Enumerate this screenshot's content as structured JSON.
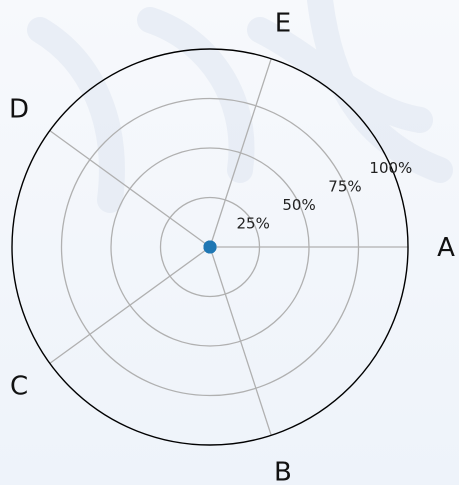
{
  "chart_data": {
    "type": "radar",
    "categories": [
      "A",
      "B",
      "C",
      "D",
      "E"
    ],
    "series": [
      {
        "values": [
          0,
          0,
          0,
          0,
          0
        ]
      }
    ],
    "radial_ticks": [
      "25%",
      "50%",
      "75%",
      "100%"
    ],
    "tick_values": [
      0.25,
      0.5,
      0.75,
      1.0
    ],
    "ylim": [
      0,
      1
    ],
    "grid": true,
    "colors": {
      "point": "#1f77b4",
      "grid": "#b0b0b0",
      "outer": "#000000"
    }
  }
}
